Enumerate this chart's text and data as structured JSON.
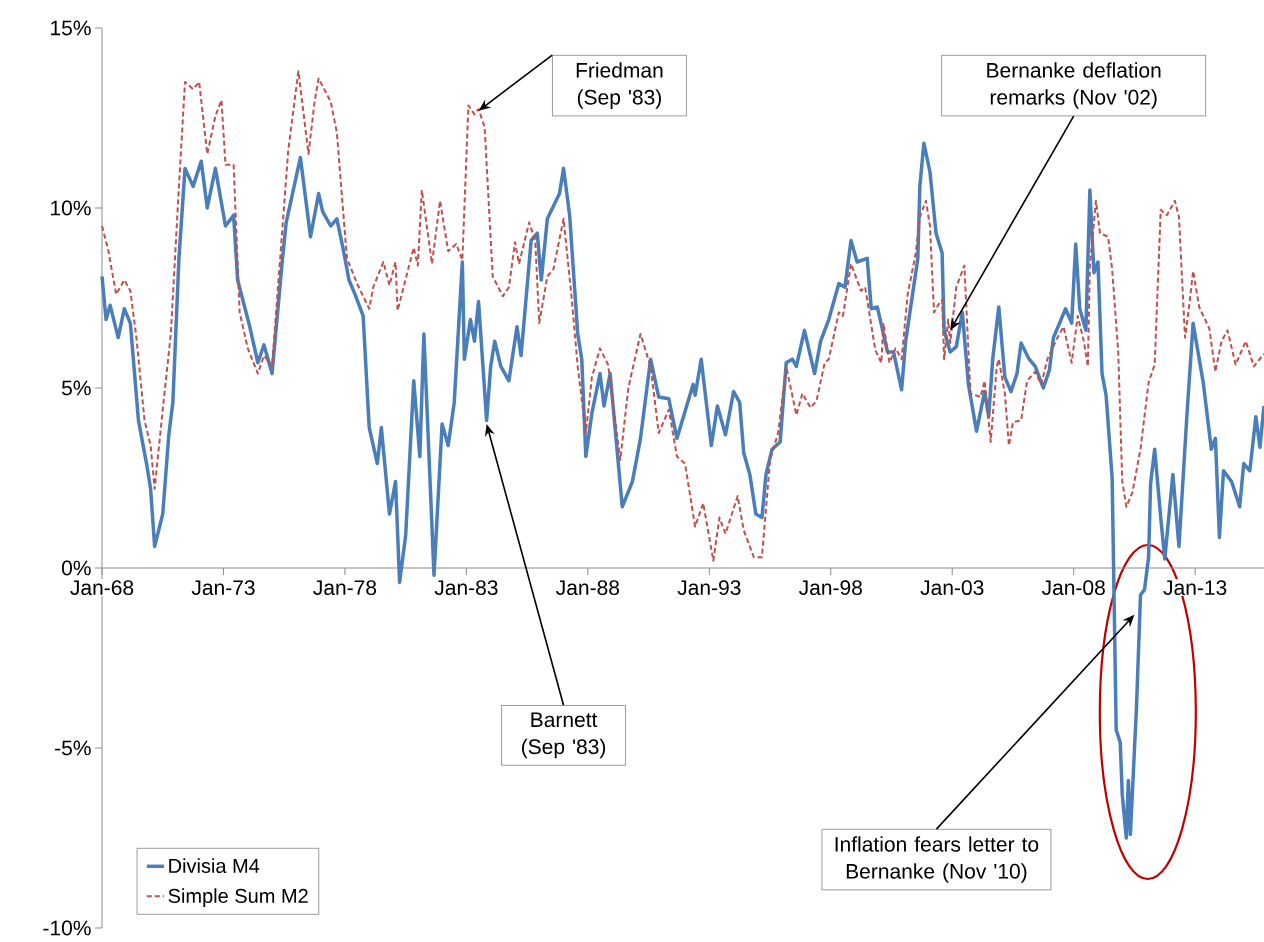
{
  "chart_data": {
    "type": "line",
    "xlim": [
      "1968-01",
      "2015-11"
    ],
    "ylim": [
      -10,
      15
    ],
    "xticks": [
      {
        "value": "1968-01",
        "label": "Jan-68"
      },
      {
        "value": "1973-01",
        "label": "Jan-73"
      },
      {
        "value": "1978-01",
        "label": "Jan-78"
      },
      {
        "value": "1983-01",
        "label": "Jan-83"
      },
      {
        "value": "1988-01",
        "label": "Jan-88"
      },
      {
        "value": "1993-01",
        "label": "Jan-93"
      },
      {
        "value": "1998-01",
        "label": "Jan-98"
      },
      {
        "value": "2003-01",
        "label": "Jan-03"
      },
      {
        "value": "2008-01",
        "label": "Jan-08"
      },
      {
        "value": "2013-01",
        "label": "Jan-13"
      }
    ],
    "yticks": [
      {
        "value": -10,
        "label": "-10%"
      },
      {
        "value": -5,
        "label": "-5%"
      },
      {
        "value": 0,
        "label": "0%"
      },
      {
        "value": 5,
        "label": "5%"
      },
      {
        "value": 10,
        "label": "10%"
      },
      {
        "value": 15,
        "label": "15%"
      }
    ],
    "legend": "bottom left",
    "marker": "none",
    "grid": false,
    "series": [
      {
        "name": "Divisia M4",
        "color": "#4a7ebb",
        "line_style": "solid",
        "x": [
          "1968-01",
          "1968-03",
          "1968-05",
          "1968-09",
          "1968-12",
          "1969-03",
          "1969-07",
          "1969-11",
          "1970-01",
          "1970-03",
          "1970-07",
          "1970-10",
          "1970-12",
          "1971-03",
          "1971-06",
          "1971-10",
          "1972-02",
          "1972-05",
          "1972-09",
          "1973-02",
          "1973-06",
          "1973-08",
          "1974-02",
          "1974-06",
          "1974-09",
          "1975-01",
          "1975-06",
          "1975-08",
          "1976-03",
          "1976-08",
          "1976-12",
          "1977-02",
          "1977-06",
          "1977-09",
          "1977-12",
          "1978-03",
          "1978-06",
          "1978-10",
          "1979-01",
          "1979-05",
          "1979-07",
          "1979-11",
          "1980-02",
          "1980-04",
          "1980-07",
          "1980-11",
          "1981-02",
          "1981-04",
          "1981-09",
          "1982-01",
          "1982-04",
          "1982-07",
          "1982-11",
          "1982-12",
          "1983-03",
          "1983-05",
          "1983-07",
          "1983-11",
          "1984-01",
          "1984-03",
          "1984-06",
          "1984-10",
          "1985-02",
          "1985-04",
          "1985-09",
          "1985-12",
          "1986-02",
          "1986-05",
          "1986-11",
          "1987-01",
          "1987-04",
          "1987-08",
          "1987-10",
          "1987-12",
          "1988-03",
          "1988-07",
          "1988-09",
          "1988-12",
          "1989-06",
          "1989-11",
          "1990-03",
          "1990-08",
          "1990-12",
          "1991-05",
          "1991-09",
          "1992-05",
          "1992-06",
          "1992-09",
          "1993-02",
          "1993-05",
          "1993-09",
          "1994-01",
          "1994-04",
          "1994-06",
          "1994-09",
          "1994-12",
          "1995-03",
          "1995-05",
          "1995-08",
          "1995-12",
          "1996-03",
          "1996-06",
          "1996-08",
          "1996-12",
          "1997-05",
          "1997-08",
          "1997-12",
          "1998-03",
          "1998-05",
          "1998-08",
          "1998-11",
          "1999-02",
          "1999-07",
          "1999-09",
          "1999-12",
          "2000-05",
          "2000-08",
          "2000-12",
          "2001-02",
          "2001-08",
          "2001-09",
          "2001-11",
          "2002-02",
          "2002-05",
          "2002-08",
          "2002-09",
          "2002-12",
          "2003-03",
          "2003-06",
          "2003-09",
          "2004-01",
          "2004-05",
          "2004-07",
          "2004-09",
          "2004-12",
          "2005-03",
          "2005-06",
          "2005-09",
          "2005-11",
          "2006-03",
          "2006-06",
          "2006-10",
          "2007-01",
          "2007-03",
          "2007-09",
          "2007-12",
          "2008-02",
          "2008-04",
          "2008-07",
          "2008-09",
          "2008-11",
          "2009-01",
          "2009-03",
          "2009-05",
          "2009-08",
          "2009-10",
          "2009-12",
          "2010-01",
          "2010-03",
          "2010-04",
          "2010-05",
          "2010-08",
          "2010-10",
          "2010-12",
          "2011-02",
          "2011-03",
          "2011-05",
          "2011-08",
          "2011-10",
          "2012-02",
          "2012-05",
          "2012-09",
          "2012-12",
          "2013-05",
          "2013-09",
          "2013-11",
          "2014-01",
          "2014-03",
          "2014-07",
          "2014-11",
          "2015-01",
          "2015-04",
          "2015-07",
          "2015-09",
          "2015-11"
        ],
        "values": [
          8.1,
          6.9,
          7.3,
          6.4,
          7.2,
          6.8,
          4.1,
          2.9,
          2.2,
          0.6,
          1.5,
          3.7,
          4.6,
          8.6,
          11.1,
          10.6,
          11.3,
          10.0,
          11.1,
          9.5,
          9.8,
          8.0,
          6.7,
          5.7,
          6.2,
          5.4,
          8.5,
          9.6,
          11.4,
          9.2,
          10.4,
          9.9,
          9.5,
          9.7,
          8.9,
          8.0,
          7.6,
          7.0,
          3.9,
          2.9,
          3.9,
          1.5,
          2.4,
          -0.4,
          0.9,
          5.2,
          3.1,
          6.5,
          -0.2,
          4.0,
          3.4,
          4.6,
          8.5,
          5.8,
          6.9,
          6.3,
          7.4,
          4.1,
          5.6,
          6.3,
          5.6,
          5.2,
          6.7,
          5.9,
          9.1,
          9.3,
          8.0,
          9.7,
          10.4,
          11.1,
          9.8,
          6.5,
          5.8,
          3.1,
          4.3,
          5.4,
          4.5,
          5.4,
          1.7,
          2.4,
          3.6,
          5.8,
          4.75,
          4.7,
          3.6,
          5.1,
          4.8,
          5.8,
          3.4,
          4.5,
          3.7,
          4.9,
          4.6,
          3.2,
          2.6,
          1.5,
          1.4,
          2.6,
          3.3,
          3.5,
          5.7,
          5.8,
          5.6,
          6.6,
          5.4,
          6.3,
          6.9,
          7.5,
          7.9,
          7.8,
          9.1,
          8.5,
          8.6,
          7.2,
          7.25,
          6.0,
          6.0,
          4.95,
          6.3,
          8.6,
          10.6,
          11.8,
          11.0,
          9.3,
          8.75,
          6.6,
          6.0,
          6.15,
          7.1,
          5.1,
          3.8,
          4.9,
          4.2,
          5.8,
          7.25,
          5.3,
          4.9,
          5.4,
          6.25,
          5.8,
          5.6,
          5.0,
          5.5,
          6.4,
          7.2,
          6.8,
          9.0,
          7.2,
          6.6,
          10.5,
          8.2,
          8.5,
          5.4,
          4.8,
          2.5,
          -4.5,
          -4.85,
          -6.3,
          -7.5,
          -5.9,
          -7.4,
          -3.9,
          -0.75,
          -0.6,
          0.3,
          2.35,
          3.3,
          1.4,
          0.25,
          2.6,
          0.6,
          4.3,
          6.8,
          5.15,
          3.3,
          3.6,
          0.85,
          2.7,
          2.4,
          1.7,
          2.9,
          2.7,
          4.2,
          3.35,
          4.5
        ]
      },
      {
        "name": "Simple Sum M2",
        "color": "#c0504d",
        "line_style": "dashed",
        "x": [
          "1968-01",
          "1968-04",
          "1968-08",
          "1968-12",
          "1969-03",
          "1969-06",
          "1969-10",
          "1970-01",
          "1970-03",
          "1970-07",
          "1970-11",
          "1971-03",
          "1971-06",
          "1971-10",
          "1972-01",
          "1972-05",
          "1972-09",
          "1972-12",
          "1973-02",
          "1973-06",
          "1973-09",
          "1974-01",
          "1974-06",
          "1974-09",
          "1975-01",
          "1975-05",
          "1975-09",
          "1976-02",
          "1976-07",
          "1976-10",
          "1976-12",
          "1977-06",
          "1977-09",
          "1978-02",
          "1978-07",
          "1979-01",
          "1979-03",
          "1979-08",
          "1979-11",
          "1980-02",
          "1980-03",
          "1980-11",
          "1981-01",
          "1981-03",
          "1981-08",
          "1981-12",
          "1982-04",
          "1982-08",
          "1982-11",
          "1983-02",
          "1983-05",
          "1983-07",
          "1983-10",
          "1984-02",
          "1984-07",
          "1984-10",
          "1985-01",
          "1985-03",
          "1985-08",
          "1985-11",
          "1986-01",
          "1986-05",
          "1986-08",
          "1987-01",
          "1987-05",
          "1987-08",
          "1987-12",
          "1988-03",
          "1988-07",
          "1988-11",
          "1989-05",
          "1989-09",
          "1990-03",
          "1990-08",
          "1990-12",
          "1991-05",
          "1991-09",
          "1992-01",
          "1992-06",
          "1992-10",
          "1993-03",
          "1993-06",
          "1993-09",
          "1994-03",
          "1994-06",
          "1994-11",
          "1995-03",
          "1995-07",
          "1995-11",
          "1996-03",
          "1996-08",
          "1996-11",
          "1997-03",
          "1997-06",
          "1997-10",
          "1997-12",
          "1998-05",
          "1998-07",
          "1998-11",
          "1999-04",
          "1999-06",
          "1999-11",
          "2000-02",
          "2000-03",
          "2000-06",
          "2000-09",
          "2000-12",
          "2001-03",
          "2001-07",
          "2001-09",
          "2001-12",
          "2002-02",
          "2002-04",
          "2002-06",
          "2002-08",
          "2002-09",
          "2002-11",
          "2002-12",
          "2003-03",
          "2003-07",
          "2003-10",
          "2004-03",
          "2004-05",
          "2004-08",
          "2004-11",
          "2004-12",
          "2005-03",
          "2005-05",
          "2005-07",
          "2005-11",
          "2006-02",
          "2006-06",
          "2006-09",
          "2006-12",
          "2007-05",
          "2007-08",
          "2007-12",
          "2008-03",
          "2008-06",
          "2008-08",
          "2008-09",
          "2008-12",
          "2009-02",
          "2009-06",
          "2009-08",
          "2009-11",
          "2010-01",
          "2010-03",
          "2010-06",
          "2010-10",
          "2011-02",
          "2011-05",
          "2011-08",
          "2011-11",
          "2012-03",
          "2012-05",
          "2012-08",
          "2012-10",
          "2012-12",
          "2013-03",
          "2013-08",
          "2013-11",
          "2014-02",
          "2014-05",
          "2014-09",
          "2015-02",
          "2015-06",
          "2015-11"
        ],
        "values": [
          9.5,
          8.85,
          7.6,
          8.0,
          7.7,
          6.4,
          4.1,
          3.4,
          2.2,
          4.4,
          6.5,
          10.6,
          13.5,
          13.3,
          13.5,
          11.5,
          12.55,
          13.0,
          11.2,
          11.2,
          7.1,
          6.1,
          5.4,
          5.9,
          5.6,
          8.6,
          11.6,
          13.8,
          11.5,
          12.95,
          13.6,
          12.95,
          12.1,
          8.6,
          7.9,
          7.2,
          7.8,
          8.5,
          7.85,
          8.5,
          7.15,
          8.9,
          8.4,
          10.5,
          8.45,
          10.2,
          8.8,
          9.0,
          8.55,
          12.85,
          12.6,
          12.75,
          12.25,
          8.1,
          7.55,
          7.8,
          9.05,
          8.45,
          9.6,
          9.1,
          6.8,
          8.1,
          8.3,
          9.7,
          7.5,
          5.6,
          3.75,
          5.3,
          6.1,
          5.65,
          3.0,
          5.0,
          6.5,
          5.6,
          3.75,
          4.4,
          3.1,
          2.9,
          1.15,
          1.8,
          0.2,
          1.4,
          0.95,
          2.0,
          1.05,
          0.3,
          0.3,
          3.0,
          3.75,
          5.6,
          4.25,
          4.85,
          4.45,
          4.65,
          5.7,
          5.8,
          7.1,
          7.0,
          8.45,
          7.7,
          7.8,
          6.05,
          5.7,
          6.8,
          5.7,
          6.1,
          5.8,
          7.6,
          8.75,
          9.75,
          10.2,
          9.5,
          7.1,
          7.3,
          7.45,
          5.8,
          6.9,
          6.25,
          7.8,
          8.4,
          4.85,
          4.75,
          5.2,
          3.5,
          5.6,
          5.8,
          4.85,
          3.4,
          4.05,
          4.1,
          5.2,
          5.45,
          5.1,
          5.8,
          6.4,
          6.7,
          5.7,
          7.0,
          6.3,
          5.6,
          8.4,
          10.2,
          9.3,
          9.2,
          8.3,
          6.0,
          2.4,
          1.7,
          2.1,
          3.3,
          5.15,
          5.65,
          9.95,
          9.8,
          10.2,
          9.75,
          6.4,
          7.25,
          8.25,
          7.25,
          6.65,
          5.45,
          6.3,
          6.6,
          5.65,
          6.3,
          5.6,
          5.95
        ]
      }
    ],
    "annotations": [
      {
        "text": "Friedman (Sep '83)",
        "x": "1983-07",
        "y": 12.7
      },
      {
        "text": "Bernanke deflation remarks (Nov '02)",
        "x": "2002-12",
        "y": 6.6
      },
      {
        "text": "Barnett (Sep '83)",
        "x": "1983-11",
        "y": 4.0
      },
      {
        "text": "Inflation fears letter to Bernanke (Nov '10)",
        "x": "2010-07",
        "y": -1.3
      }
    ]
  }
}
